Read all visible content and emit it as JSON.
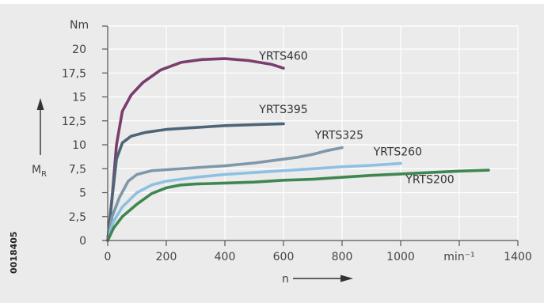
{
  "chart_data": {
    "type": "line",
    "figure_id": "0018405",
    "y_unit": "Nm",
    "x_unit": "min⁻¹",
    "ylabel": "M",
    "ylabel_sub": "R",
    "xlabel": "n",
    "xlim": [
      0,
      1400
    ],
    "ylim": [
      0,
      20
    ],
    "x_ticks": [
      {
        "value": 0,
        "label": "0"
      },
      {
        "value": 200,
        "label": "200"
      },
      {
        "value": 400,
        "label": "400"
      },
      {
        "value": 600,
        "label": "600"
      },
      {
        "value": 800,
        "label": "800"
      },
      {
        "value": 1000,
        "label": "1000"
      },
      {
        "value": 1400,
        "label": "1400"
      }
    ],
    "x_unit_at": 1200,
    "y_ticks": [
      {
        "value": 0,
        "label": "0"
      },
      {
        "value": 2.5,
        "label": "2,5"
      },
      {
        "value": 5,
        "label": "5"
      },
      {
        "value": 7.5,
        "label": "7,5"
      },
      {
        "value": 10,
        "label": "10"
      },
      {
        "value": 12.5,
        "label": "12,5"
      },
      {
        "value": 15,
        "label": "15"
      },
      {
        "value": 17.5,
        "label": "17,5"
      },
      {
        "value": 20,
        "label": "20"
      }
    ],
    "grid": true,
    "series": [
      {
        "name": "YRTS460",
        "color": "#7a3d6e",
        "points": [
          [
            0,
            0
          ],
          [
            15,
            4.5
          ],
          [
            30,
            10.0
          ],
          [
            50,
            13.5
          ],
          [
            80,
            15.2
          ],
          [
            120,
            16.5
          ],
          [
            180,
            17.8
          ],
          [
            250,
            18.6
          ],
          [
            320,
            18.9
          ],
          [
            400,
            19.0
          ],
          [
            480,
            18.8
          ],
          [
            560,
            18.4
          ],
          [
            600,
            18.0
          ]
        ]
      },
      {
        "name": "YRTS395",
        "color": "#4d6577",
        "points": [
          [
            0,
            0
          ],
          [
            15,
            4.5
          ],
          [
            30,
            8.5
          ],
          [
            50,
            10.2
          ],
          [
            80,
            10.9
          ],
          [
            130,
            11.3
          ],
          [
            200,
            11.6
          ],
          [
            300,
            11.8
          ],
          [
            400,
            12.0
          ],
          [
            500,
            12.1
          ],
          [
            600,
            12.2
          ]
        ]
      },
      {
        "name": "YRTS325",
        "color": "#7f98a9",
        "points": [
          [
            0,
            0
          ],
          [
            15,
            2.5
          ],
          [
            40,
            4.5
          ],
          [
            70,
            6.2
          ],
          [
            100,
            6.9
          ],
          [
            150,
            7.3
          ],
          [
            200,
            7.4
          ],
          [
            300,
            7.6
          ],
          [
            400,
            7.8
          ],
          [
            500,
            8.1
          ],
          [
            600,
            8.5
          ],
          [
            650,
            8.7
          ],
          [
            700,
            9.0
          ],
          [
            750,
            9.4
          ],
          [
            800,
            9.7
          ]
        ]
      },
      {
        "name": "YRTS260",
        "color": "#8ec0e3",
        "points": [
          [
            0,
            0
          ],
          [
            20,
            2.0
          ],
          [
            50,
            3.5
          ],
          [
            100,
            5.0
          ],
          [
            150,
            5.8
          ],
          [
            200,
            6.2
          ],
          [
            300,
            6.6
          ],
          [
            400,
            6.9
          ],
          [
            500,
            7.1
          ],
          [
            600,
            7.3
          ],
          [
            700,
            7.5
          ],
          [
            800,
            7.7
          ],
          [
            900,
            7.85
          ],
          [
            1000,
            8.05
          ]
        ]
      },
      {
        "name": "YRTS200",
        "color": "#3f8750",
        "points": [
          [
            0,
            0
          ],
          [
            20,
            1.3
          ],
          [
            50,
            2.5
          ],
          [
            100,
            3.8
          ],
          [
            150,
            4.9
          ],
          [
            200,
            5.5
          ],
          [
            250,
            5.8
          ],
          [
            300,
            5.9
          ],
          [
            400,
            6.0
          ],
          [
            500,
            6.1
          ],
          [
            600,
            6.3
          ],
          [
            700,
            6.4
          ],
          [
            800,
            6.6
          ],
          [
            900,
            6.8
          ],
          [
            1000,
            6.95
          ],
          [
            1100,
            7.1
          ],
          [
            1200,
            7.25
          ],
          [
            1300,
            7.35
          ]
        ]
      }
    ],
    "series_labels": [
      {
        "name": "YRTS460",
        "text": "YRTS460",
        "x": 600,
        "y": 18.9
      },
      {
        "name": "YRTS395",
        "text": "YRTS395",
        "x": 600,
        "y": 13.3
      },
      {
        "name": "YRTS325",
        "text": "YRTS325",
        "x": 790,
        "y": 10.6
      },
      {
        "name": "YRTS260",
        "text": "YRTS260",
        "x": 990,
        "y": 8.9
      },
      {
        "name": "YRTS200",
        "text": "YRTS200",
        "x": 1100,
        "y": 6.0
      }
    ]
  }
}
